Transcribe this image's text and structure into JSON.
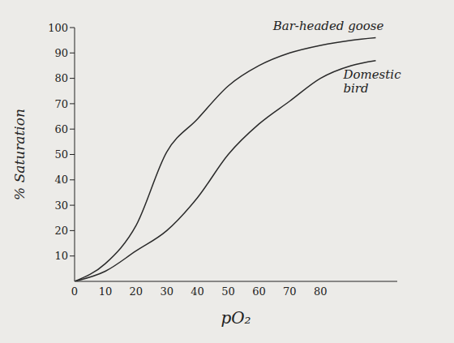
{
  "chart_data": {
    "type": "line",
    "x_label": "pO₂",
    "y_label": "% Saturation",
    "x": [
      0,
      10,
      20,
      30,
      40,
      50,
      60,
      70,
      80,
      90,
      98
    ],
    "series": [
      {
        "name": "Bar-headed goose",
        "color": "#2a2a2a",
        "values": [
          0,
          7,
          22,
          51,
          64,
          77,
          85,
          90,
          93,
          95,
          96
        ]
      },
      {
        "name": "Domestic bird",
        "color": "#2a2a2a",
        "values": [
          0,
          4,
          12,
          20,
          33,
          50,
          62,
          71,
          80,
          85,
          87
        ]
      }
    ],
    "xlim": [
      0,
      105
    ],
    "ylim": [
      0,
      100
    ],
    "xticks": [
      0,
      10,
      20,
      30,
      40,
      50,
      60,
      70,
      80
    ],
    "yticks": [
      10,
      20,
      30,
      40,
      50,
      60,
      70,
      80,
      90,
      100
    ],
    "grid": false
  }
}
